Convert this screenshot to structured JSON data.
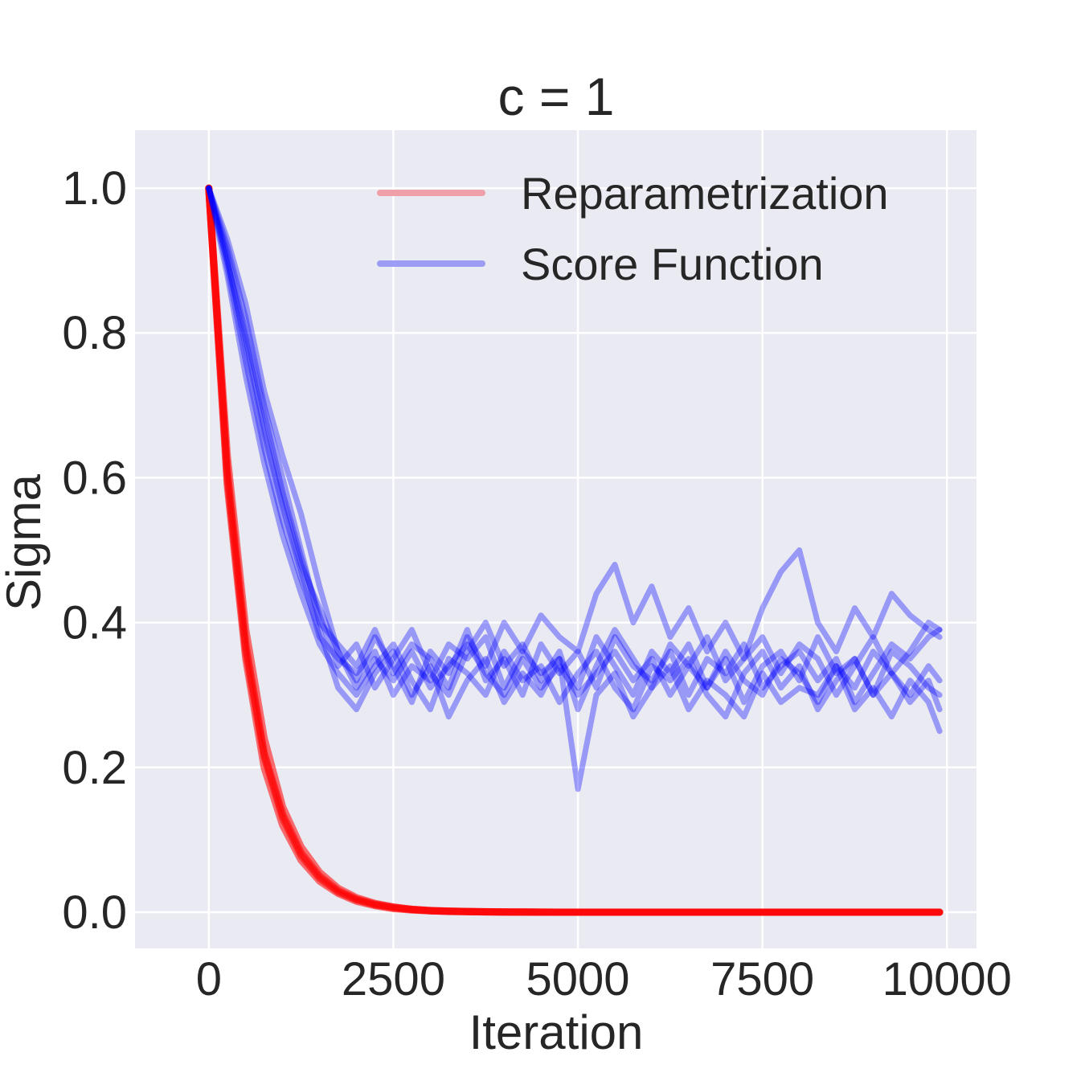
{
  "chart_data": {
    "type": "line",
    "title": "c = 1",
    "xlabel": "Iteration",
    "ylabel": "Sigma",
    "xlim": [
      -1000,
      10400
    ],
    "ylim": [
      -0.05,
      1.08
    ],
    "xticks": [
      0,
      2500,
      5000,
      7500,
      10000
    ],
    "xtick_labels": [
      "0",
      "2500",
      "5000",
      "7500",
      "10000"
    ],
    "yticks": [
      0.0,
      0.2,
      0.4,
      0.6,
      0.8,
      1.0
    ],
    "ytick_labels": [
      "0.0",
      "0.2",
      "0.4",
      "0.6",
      "0.8",
      "1.0"
    ],
    "grid": true,
    "background": "#eaeaf2",
    "legend": {
      "position": "top-right",
      "entries": [
        {
          "label": "Reparametrization",
          "color": "#f0a0a8"
        },
        {
          "label": "Score Function",
          "color": "#9c9cf4"
        }
      ]
    },
    "x": [
      0,
      250,
      500,
      750,
      1000,
      1250,
      1500,
      1750,
      2000,
      2250,
      2500,
      2750,
      3000,
      3250,
      3500,
      3750,
      4000,
      4250,
      4500,
      4750,
      5000,
      5250,
      5500,
      5750,
      6000,
      6250,
      6500,
      6750,
      7000,
      7250,
      7500,
      7750,
      8000,
      8250,
      8500,
      8750,
      9000,
      9250,
      9500,
      9750,
      9900
    ],
    "series": [
      {
        "group": "Reparametrization",
        "color": "#ff0000",
        "values": [
          1.0,
          0.61,
          0.37,
          0.22,
          0.135,
          0.082,
          0.05,
          0.03,
          0.018,
          0.011,
          0.007,
          0.004,
          0.002,
          0.0015,
          0.001,
          0.0005,
          0.0003,
          0.0002,
          0.0001,
          0.0,
          0.0,
          0.0,
          0.0,
          0.0,
          0.0,
          0.0,
          0.0,
          0.0,
          0.0,
          0.0,
          0.0,
          0.0,
          0.0,
          0.0,
          0.0,
          0.0,
          0.0,
          0.0,
          0.0,
          0.0,
          0.0
        ]
      },
      {
        "group": "Reparametrization",
        "color": "#ff0000",
        "values": [
          1.0,
          0.59,
          0.35,
          0.2,
          0.12,
          0.072,
          0.043,
          0.026,
          0.015,
          0.009,
          0.005,
          0.003,
          0.002,
          0.001,
          0.0006,
          0.0004,
          0.0002,
          0.0001,
          0.0,
          0.0,
          0.0,
          0.0,
          0.0,
          0.0,
          0.0,
          0.0,
          0.0,
          0.0,
          0.0,
          0.0,
          0.0,
          0.0,
          0.0,
          0.0,
          0.0,
          0.0,
          0.0,
          0.0,
          0.0,
          0.0,
          0.0
        ]
      },
      {
        "group": "Reparametrization",
        "color": "#ff0000",
        "values": [
          1.0,
          0.63,
          0.39,
          0.24,
          0.145,
          0.09,
          0.055,
          0.033,
          0.02,
          0.012,
          0.007,
          0.004,
          0.0025,
          0.0015,
          0.001,
          0.0006,
          0.0003,
          0.0002,
          0.0001,
          0.0,
          0.0,
          0.0,
          0.0,
          0.0,
          0.0,
          0.0,
          0.0,
          0.0,
          0.0,
          0.0,
          0.0,
          0.0,
          0.0,
          0.0,
          0.0,
          0.0,
          0.0,
          0.0,
          0.0,
          0.0,
          0.0
        ]
      },
      {
        "group": "Reparametrization",
        "color": "#ff0000",
        "values": [
          1.0,
          0.6,
          0.36,
          0.215,
          0.13,
          0.078,
          0.047,
          0.028,
          0.017,
          0.01,
          0.006,
          0.0035,
          0.002,
          0.0012,
          0.0007,
          0.0004,
          0.0002,
          0.0001,
          0.0,
          0.0,
          0.0,
          0.0,
          0.0,
          0.0,
          0.0,
          0.0,
          0.0,
          0.0,
          0.0,
          0.0,
          0.0,
          0.0,
          0.0,
          0.0,
          0.0,
          0.0,
          0.0,
          0.0,
          0.0,
          0.0,
          0.0
        ]
      },
      {
        "group": "Score Function",
        "color": "#0000ff",
        "values": [
          1.0,
          0.9,
          0.78,
          0.66,
          0.56,
          0.47,
          0.38,
          0.35,
          0.33,
          0.36,
          0.3,
          0.34,
          0.32,
          0.37,
          0.35,
          0.38,
          0.31,
          0.36,
          0.33,
          0.35,
          0.31,
          0.38,
          0.34,
          0.3,
          0.36,
          0.33,
          0.37,
          0.31,
          0.35,
          0.29,
          0.34,
          0.36,
          0.32,
          0.38,
          0.33,
          0.35,
          0.3,
          0.36,
          0.34,
          0.31,
          0.3
        ]
      },
      {
        "group": "Score Function",
        "color": "#0000ff",
        "values": [
          1.0,
          0.93,
          0.84,
          0.72,
          0.63,
          0.55,
          0.45,
          0.36,
          0.32,
          0.38,
          0.34,
          0.29,
          0.36,
          0.33,
          0.39,
          0.32,
          0.35,
          0.3,
          0.37,
          0.33,
          0.36,
          0.31,
          0.38,
          0.34,
          0.32,
          0.36,
          0.3,
          0.35,
          0.33,
          0.37,
          0.31,
          0.34,
          0.36,
          0.32,
          0.35,
          0.29,
          0.33,
          0.37,
          0.35,
          0.38,
          0.39
        ]
      },
      {
        "group": "Score Function",
        "color": "#0000ff",
        "values": [
          1.0,
          0.88,
          0.74,
          0.62,
          0.52,
          0.44,
          0.37,
          0.33,
          0.3,
          0.34,
          0.37,
          0.32,
          0.28,
          0.35,
          0.33,
          0.3,
          0.36,
          0.32,
          0.34,
          0.29,
          0.33,
          0.36,
          0.31,
          0.28,
          0.34,
          0.32,
          0.35,
          0.3,
          0.27,
          0.33,
          0.36,
          0.31,
          0.34,
          0.28,
          0.32,
          0.35,
          0.3,
          0.33,
          0.29,
          0.32,
          0.28
        ]
      },
      {
        "group": "Score Function",
        "color": "#0000ff",
        "values": [
          1.0,
          0.91,
          0.8,
          0.69,
          0.58,
          0.49,
          0.41,
          0.34,
          0.37,
          0.31,
          0.35,
          0.39,
          0.33,
          0.3,
          0.36,
          0.4,
          0.34,
          0.37,
          0.32,
          0.36,
          0.28,
          0.34,
          0.39,
          0.35,
          0.31,
          0.37,
          0.34,
          0.38,
          0.32,
          0.35,
          0.38,
          0.33,
          0.37,
          0.35,
          0.3,
          0.34,
          0.38,
          0.33,
          0.36,
          0.4,
          0.39
        ]
      },
      {
        "group": "Score Function",
        "color": "#0000ff",
        "values": [
          1.0,
          0.89,
          0.76,
          0.64,
          0.54,
          0.46,
          0.39,
          0.31,
          0.28,
          0.33,
          0.36,
          0.3,
          0.34,
          0.27,
          0.32,
          0.35,
          0.29,
          0.33,
          0.3,
          0.35,
          0.17,
          0.3,
          0.33,
          0.27,
          0.31,
          0.34,
          0.28,
          0.32,
          0.3,
          0.27,
          0.33,
          0.29,
          0.31,
          0.3,
          0.34,
          0.28,
          0.31,
          0.27,
          0.32,
          0.29,
          0.25
        ]
      },
      {
        "group": "Score Function",
        "color": "#0000ff",
        "values": [
          1.0,
          0.92,
          0.82,
          0.7,
          0.6,
          0.5,
          0.4,
          0.37,
          0.34,
          0.39,
          0.33,
          0.37,
          0.35,
          0.31,
          0.38,
          0.34,
          0.4,
          0.36,
          0.41,
          0.38,
          0.36,
          0.44,
          0.48,
          0.4,
          0.45,
          0.38,
          0.42,
          0.36,
          0.4,
          0.35,
          0.42,
          0.47,
          0.5,
          0.4,
          0.36,
          0.42,
          0.38,
          0.44,
          0.41,
          0.39,
          0.38
        ]
      },
      {
        "group": "Score Function",
        "color": "#0000ff",
        "values": [
          1.0,
          0.9,
          0.79,
          0.67,
          0.57,
          0.48,
          0.42,
          0.36,
          0.31,
          0.35,
          0.32,
          0.36,
          0.31,
          0.34,
          0.37,
          0.33,
          0.3,
          0.35,
          0.31,
          0.34,
          0.3,
          0.33,
          0.36,
          0.32,
          0.35,
          0.3,
          0.34,
          0.31,
          0.36,
          0.32,
          0.3,
          0.35,
          0.33,
          0.29,
          0.34,
          0.31,
          0.36,
          0.33,
          0.3,
          0.34,
          0.32
        ]
      }
    ]
  }
}
